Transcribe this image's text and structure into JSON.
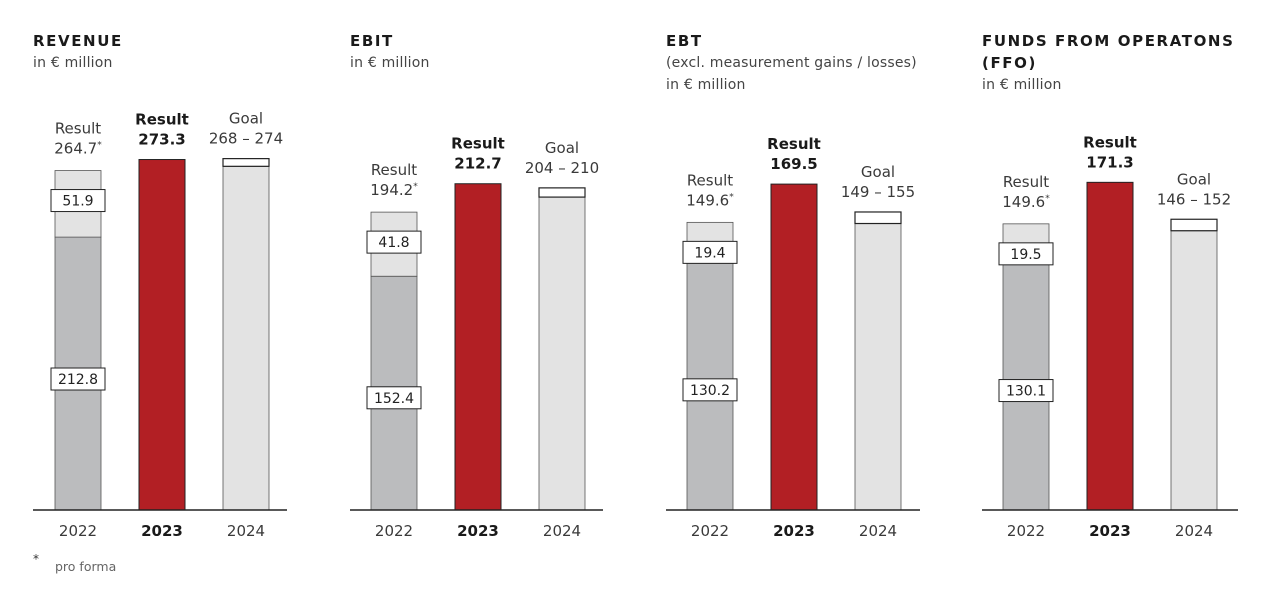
{
  "footnote": {
    "mark": "*",
    "text": "pro forma"
  },
  "colors": {
    "base": "#bbbcbe",
    "increment": "#e3e3e3",
    "result": "#b21f24",
    "goal": "#e3e3e3",
    "axis": "#222222",
    "text": "#3a3a3a"
  },
  "chart_data": [
    {
      "type": "bar",
      "title": "REVENUE",
      "subtitle": [
        "in € million"
      ],
      "categories": [
        "2022",
        "2023",
        "2024"
      ],
      "bold_category": "2023",
      "bars": [
        {
          "category": "2022",
          "kind": "stacked",
          "total": 264.7,
          "label_lines": [
            "Result",
            "264.7"
          ],
          "asterisk": true,
          "segments": [
            {
              "value": 212.8,
              "label": "212.8"
            },
            {
              "value": 51.9,
              "label": "51.9"
            }
          ]
        },
        {
          "category": "2023",
          "kind": "result",
          "value": 273.3,
          "label_lines": [
            "Result",
            "273.3"
          ]
        },
        {
          "category": "2024",
          "kind": "goal",
          "range": [
            268,
            274
          ],
          "label_lines": [
            "Goal",
            "268 – 274"
          ]
        }
      ]
    },
    {
      "type": "bar",
      "title": "EBIT",
      "subtitle": [
        "in € million"
      ],
      "categories": [
        "2022",
        "2023",
        "2024"
      ],
      "bold_category": "2023",
      "bars": [
        {
          "category": "2022",
          "kind": "stacked",
          "total": 194.2,
          "label_lines": [
            "Result",
            "194.2"
          ],
          "asterisk": true,
          "segments": [
            {
              "value": 152.4,
              "label": "152.4"
            },
            {
              "value": 41.8,
              "label": "41.8"
            }
          ]
        },
        {
          "category": "2023",
          "kind": "result",
          "value": 212.7,
          "label_lines": [
            "Result",
            "212.7"
          ]
        },
        {
          "category": "2024",
          "kind": "goal",
          "range": [
            204,
            210
          ],
          "label_lines": [
            "Goal",
            "204 – 210"
          ]
        }
      ]
    },
    {
      "type": "bar",
      "title": "EBT",
      "subtitle": [
        "(excl. measurement gains / losses)",
        "in € million"
      ],
      "categories": [
        "2022",
        "2023",
        "2024"
      ],
      "bold_category": "2023",
      "bars": [
        {
          "category": "2022",
          "kind": "stacked",
          "total": 149.6,
          "label_lines": [
            "Result",
            "149.6"
          ],
          "asterisk": true,
          "segments": [
            {
              "value": 130.2,
              "label": "130.2"
            },
            {
              "value": 19.4,
              "label": "19.4"
            }
          ]
        },
        {
          "category": "2023",
          "kind": "result",
          "value": 169.5,
          "label_lines": [
            "Result",
            "169.5"
          ]
        },
        {
          "category": "2024",
          "kind": "goal",
          "range": [
            149,
            155
          ],
          "label_lines": [
            "Goal",
            "149 – 155"
          ]
        }
      ]
    },
    {
      "type": "bar",
      "title": "FUNDS FROM OPERATONS (FFO)",
      "subtitle": [
        "in € million"
      ],
      "categories": [
        "2022",
        "2023",
        "2024"
      ],
      "bold_category": "2023",
      "bars": [
        {
          "category": "2022",
          "kind": "stacked",
          "total": 149.6,
          "label_lines": [
            "Result",
            "149.6"
          ],
          "asterisk": true,
          "segments": [
            {
              "value": 130.1,
              "label": "130.1"
            },
            {
              "value": 19.5,
              "label": "19.5"
            }
          ]
        },
        {
          "category": "2023",
          "kind": "result",
          "value": 171.3,
          "label_lines": [
            "Result",
            "171.3"
          ]
        },
        {
          "category": "2024",
          "kind": "goal",
          "range": [
            146,
            152
          ],
          "label_lines": [
            "Goal",
            "146 – 152"
          ]
        }
      ]
    }
  ]
}
